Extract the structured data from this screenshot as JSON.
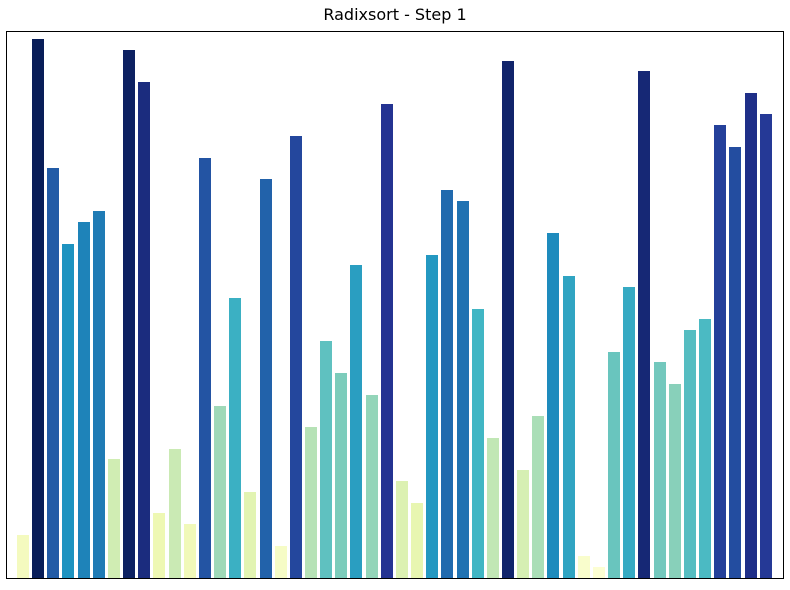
{
  "chart_data": {
    "type": "bar",
    "title": "Radixsort - Step 1",
    "algorithm": "Radixsort",
    "step_label": "Step 1",
    "n_bars": 50,
    "values": [
      4,
      50,
      38,
      31,
      33,
      34,
      11,
      49,
      46,
      6,
      12,
      5,
      39,
      16,
      26,
      8,
      37,
      3,
      41,
      14,
      22,
      19,
      29,
      17,
      44,
      9,
      7,
      30,
      36,
      35,
      25,
      13,
      48,
      10,
      15,
      32,
      28,
      2,
      1,
      21,
      27,
      47,
      20,
      18,
      23,
      24,
      42,
      40,
      45,
      43
    ],
    "bar_colors": [
      "#f4fabf",
      "#081d58",
      "#225ba6",
      "#1e93c0",
      "#1e83b9",
      "#1f7bb5",
      "#d0edb3",
      "#0d2162",
      "#1b2c7e",
      "#eef8b3",
      "#caeab4",
      "#f1f9b9",
      "#2354a3",
      "#9fd9b8",
      "#3bb0c3",
      "#e2f4b2",
      "#2262aa",
      "#f6fcc6",
      "#24479d",
      "#b6e2b6",
      "#5fc1c0",
      "#7cccbb",
      "#2a9ec1",
      "#93d5b9",
      "#243392",
      "#dcf1b2",
      "#e8f6b1",
      "#2498c1",
      "#216aae",
      "#2072b2",
      "#41b6c4",
      "#c1e7b5",
      "#11246b",
      "#d6efb3",
      "#aadeb7",
      "#1e8bbd",
      "#30a4c2",
      "#f9fdcc",
      "#fcfed3",
      "#69c5be",
      "#36aac3",
      "#162875",
      "#73c8bd",
      "#88d0ba",
      "#55bdc1",
      "#4bbac3",
      "#24409a",
      "#234da0",
      "#1f2f88",
      "#253996"
    ],
    "colormap": "YlGnBu",
    "value_range": [
      1,
      50
    ],
    "ylim": [
      0,
      50.65
    ],
    "xlabel": "",
    "ylabel": "",
    "tick_labels": "none",
    "grid": false,
    "legend": null,
    "frame_color": "#000000",
    "background_color": "#ffffff"
  }
}
